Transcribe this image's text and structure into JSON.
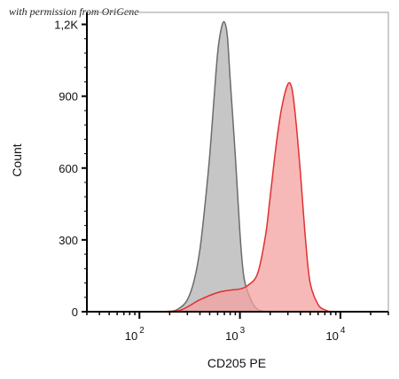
{
  "watermark": "with permission from OriGene",
  "chart_data": {
    "type": "area",
    "title": "",
    "xlabel": "CD205 PE",
    "ylabel": "Count",
    "x_scale": "log",
    "xlim": [
      30,
      30000
    ],
    "ylim": [
      0,
      1250
    ],
    "x_ticks": [
      {
        "value": 100,
        "base": "10",
        "exp": "2"
      },
      {
        "value": 1000,
        "base": "10",
        "exp": "3"
      },
      {
        "value": 10000,
        "base": "10",
        "exp": "4"
      }
    ],
    "y_ticks": [
      {
        "value": 0,
        "label": "0"
      },
      {
        "value": 300,
        "label": "300"
      },
      {
        "value": 600,
        "label": "600"
      },
      {
        "value": 900,
        "label": "900"
      },
      {
        "value": 1200,
        "label": "1,2K"
      }
    ],
    "grid": false,
    "series": [
      {
        "color": "#6b6b6b",
        "fill": "#b3b3b3",
        "x": [
          130,
          200,
          250,
          300,
          350,
          400,
          450,
          500,
          550,
          600,
          650,
          700,
          750,
          800,
          900,
          1000,
          1100,
          1300,
          1500,
          1800
        ],
        "y": [
          0,
          0,
          15,
          50,
          130,
          260,
          450,
          650,
          880,
          1080,
          1180,
          1210,
          1150,
          970,
          650,
          330,
          140,
          45,
          10,
          0
        ]
      },
      {
        "color": "#e03030",
        "fill": "#f4a0a0",
        "x": [
          150,
          250,
          400,
          600,
          800,
          1000,
          1200,
          1500,
          1800,
          2000,
          2300,
          2600,
          3000,
          3300,
          3600,
          4000,
          4500,
          5000,
          6000,
          7000,
          8000
        ],
        "y": [
          0,
          5,
          50,
          80,
          90,
          95,
          110,
          160,
          320,
          480,
          700,
          850,
          950,
          930,
          800,
          580,
          300,
          120,
          30,
          8,
          0
        ]
      }
    ]
  }
}
